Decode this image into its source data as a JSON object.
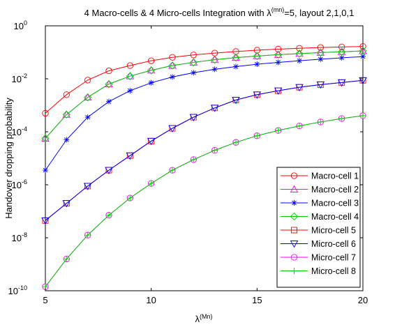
{
  "chart_data": {
    "type": "line",
    "title_main": "4 Macro-cells & 4 Micro-cells Integration with λ",
    "title_sup": "(mn)",
    "title_rest": "=5, layout 2,1,0,1",
    "xlabel_main": "λ",
    "xlabel_sup": "(Mn)",
    "ylabel": "Handover dropping probability",
    "xlim": [
      5,
      20
    ],
    "ylim_log10": [
      -10,
      0
    ],
    "yscale": "log",
    "legend_position": "bottom-right",
    "x_ticks": [
      5,
      10,
      15,
      20
    ],
    "x_tick_labels": [
      "5",
      "10",
      "15",
      "20"
    ],
    "y_ticks_exp": [
      0,
      -2,
      -4,
      -6,
      -8,
      -10
    ],
    "y_tick_base": "10",
    "y_tick_exps": [
      "0",
      "-2",
      "-4",
      "-6",
      "-8",
      "-10"
    ],
    "x": [
      5,
      6,
      7,
      8,
      9,
      10,
      11,
      12,
      13,
      14,
      15,
      16,
      17,
      18,
      19,
      20
    ],
    "series": [
      {
        "name": "Macro-cell 1",
        "color": "#ff0000",
        "marker": "circle",
        "values_log10": [
          -3.3,
          -2.6,
          -2.05,
          -1.7,
          -1.5,
          -1.32,
          -1.19,
          -1.1,
          -1.03,
          -0.97,
          -0.92,
          -0.88,
          -0.85,
          -0.82,
          -0.8,
          -0.78
        ]
      },
      {
        "name": "Macro-cell 2",
        "color": "#ff00ff",
        "marker": "triangle-up",
        "values_log10": [
          -4.25,
          -3.35,
          -2.7,
          -2.2,
          -1.9,
          -1.68,
          -1.5,
          -1.38,
          -1.28,
          -1.2,
          -1.14,
          -1.09,
          -1.05,
          -1.01,
          -0.98,
          -0.95
        ]
      },
      {
        "name": "Macro-cell 3",
        "color": "#0000ff",
        "marker": "asterisk",
        "values_log10": [
          -5.45,
          -4.3,
          -3.45,
          -2.86,
          -2.45,
          -2.15,
          -1.93,
          -1.77,
          -1.64,
          -1.54,
          -1.45,
          -1.38,
          -1.32,
          -1.26,
          -1.21,
          -1.16
        ]
      },
      {
        "name": "Macro-cell 4",
        "color": "#00cc00",
        "marker": "diamond",
        "values_log10": [
          -4.25,
          -3.35,
          -2.7,
          -2.2,
          -1.9,
          -1.68,
          -1.5,
          -1.38,
          -1.28,
          -1.2,
          -1.14,
          -1.09,
          -1.05,
          -1.01,
          -0.98,
          -0.95
        ]
      },
      {
        "name": "Micro-cell 5",
        "color": "#ff0000",
        "marker": "square",
        "values_log10": [
          -7.35,
          -6.7,
          -6.05,
          -5.45,
          -4.9,
          -4.35,
          -3.87,
          -3.45,
          -3.1,
          -2.8,
          -2.6,
          -2.45,
          -2.32,
          -2.22,
          -2.14,
          -2.06
        ]
      },
      {
        "name": "Micro-cell 6",
        "color": "#0000ff",
        "marker": "triangle-down",
        "values_log10": [
          -7.35,
          -6.7,
          -6.05,
          -5.45,
          -4.9,
          -4.35,
          -3.87,
          -3.45,
          -3.1,
          -2.8,
          -2.6,
          -2.45,
          -2.32,
          -2.22,
          -2.14,
          -2.06
        ]
      },
      {
        "name": "Micro-cell 7",
        "color": "#ff00ff",
        "marker": "circle",
        "values_log10": [
          -9.85,
          -8.8,
          -7.9,
          -7.15,
          -6.5,
          -5.95,
          -5.45,
          -5.05,
          -4.7,
          -4.4,
          -4.15,
          -3.95,
          -3.78,
          -3.63,
          -3.5,
          -3.39
        ]
      },
      {
        "name": "Micro-cell 8",
        "color": "#00cc00",
        "marker": "plus",
        "values_log10": [
          -9.85,
          -8.8,
          -7.9,
          -7.15,
          -6.5,
          -5.95,
          -5.45,
          -5.05,
          -4.7,
          -4.4,
          -4.15,
          -3.95,
          -3.78,
          -3.63,
          -3.5,
          -3.39
        ]
      }
    ]
  }
}
